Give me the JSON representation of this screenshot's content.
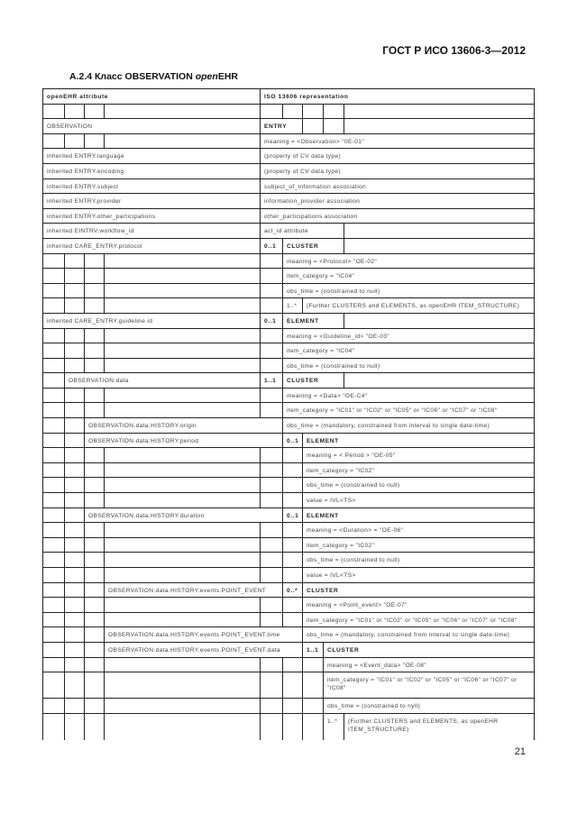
{
  "header": {
    "standard": "ГОСТ Р ИСО 13606-3—2012"
  },
  "section": {
    "number": "A.2.4 Класс OBSERVATION ",
    "italic": "open",
    "suffix": "EHR"
  },
  "table": {
    "rows": [
      [
        "openEHR attribute",
        "ISO 13606 representation"
      ],
      [],
      [
        "OBSERVATION",
        "ENTRY"
      ],
      [
        "meaning = <Observation> \"0E-01\""
      ],
      [
        "inherited ENTRY.language",
        "(property of CV data type)"
      ],
      [
        "inherited ENTRY.encoding",
        "(property of CV data type)"
      ],
      [
        "inherited ENTRY.subject",
        "subject_of_information association"
      ],
      [
        "inherited ENTRY.provider",
        "information_provider association"
      ],
      [
        "inherited ENTRY.other_participations",
        "other_participations association"
      ],
      [
        "inherited EINTRV.workflow_id",
        "act_id attribute"
      ],
      [
        "inherited CARE_ENTRY.protocol",
        "0..1",
        "CLUSTER"
      ],
      [
        "meaning = <Protocol> \"OE-02\""
      ],
      [
        "item_category = \"IC04\""
      ],
      [
        "obs_time = (constrained to null)"
      ],
      [
        "1..*",
        "(Further CLUSTERS and ELEMENTS, as openEHR ITEM_STRUCTURE)"
      ],
      [
        "inherited CARE_ENTRY.guideline id",
        "0..1",
        "ELEMENT"
      ],
      [
        "meaning = <Guideline_id> \"OE-03\""
      ],
      [
        "item_category = \"IC04\""
      ],
      [
        "obs_time = (constrained to null)"
      ],
      [
        "OBSERVATION.data",
        "1..1",
        "CLUSTER"
      ],
      [
        "meaning = <Data> \"OE-C4\""
      ],
      [
        "item_category = \"IC01\" or \"IC02\" or \"IC05\" or \"IC06\" or \"IC07\" or \"IC08\""
      ],
      [
        "OBSERVATION.data.HISTORY.origin",
        "obs_time = (mandatory, constrained from interval to single date-time)"
      ],
      [
        "OBSERVATION.data.HISTORY.period",
        "0..1",
        "ELEMENT"
      ],
      [
        "meaning = < Period > \"OE-05\""
      ],
      [
        "item_category = \"IC02\""
      ],
      [
        "obs_time = (constrained to null)"
      ],
      [
        "value = IVL<TS>"
      ],
      [
        "OBSERVATION.data.HISTORY.duration",
        "0..1",
        "ELEMENT"
      ],
      [
        "meaning = <Duration> = \"OE-06\""
      ],
      [
        "item_category = \"IC02\""
      ],
      [
        "obs_time = (constrained to null)"
      ],
      [
        "value = IVL<TS>"
      ],
      [
        "OBSERVATION.data.HISTORY.events.POINT_EVENT",
        "0..*",
        "CLUSTER"
      ],
      [
        "meaning = <Point_event> \"OE-07\""
      ],
      [
        "item_category = \"IC01\" or \"IC02\" or \"IC05\" or \"IC06\" or \"IC07\" or \"IC08\""
      ],
      [
        "OBSERVATION.data.HISTORY.events.POINT_EVENT.time",
        "obs_time = (mandatory, constrained from interval to single date-time)"
      ],
      [
        "OBSERVATION.data.HISTORY.events.POINT_EVENT.data",
        "1..1",
        "CLUSTER"
      ],
      [
        "meaning = <Event_data> \"OE-08\""
      ],
      [
        "item_category = \"IC01\" or \"IC02\" or \"IC05\" or \"IC06\" or \"IC07\" or \"IC08\""
      ],
      [
        "obs_time = (constrained to nyll)"
      ],
      [
        "1..*",
        "(Further CLUSTERS and ELEMENTS, as openEHR ITEM_STRUCTURE)"
      ]
    ]
  },
  "footer": {
    "page_number": "21"
  }
}
